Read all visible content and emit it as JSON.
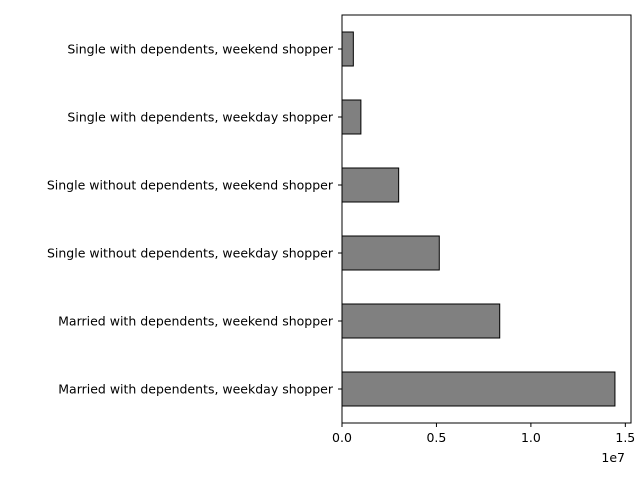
{
  "chart_data": {
    "type": "bar",
    "orientation": "horizontal",
    "categories": [
      "Single with dependents, weekend shopper",
      "Single with dependents, weekday shopper",
      "Single without dependents, weekend shopper",
      "Single without dependents, weekday shopper",
      "Married with dependents, weekend shopper",
      "Married with dependents, weekday shopper"
    ],
    "values": [
      600000,
      1000000,
      3000000,
      5150000,
      8350000,
      14450000
    ],
    "title": "",
    "xlabel": "",
    "ylabel": "",
    "xlim": [
      0,
      15300000
    ],
    "x_ticks": [
      {
        "value": 0,
        "label": "0.0"
      },
      {
        "value": 5000000,
        "label": "0.5"
      },
      {
        "value": 10000000,
        "label": "1.0"
      },
      {
        "value": 15000000,
        "label": "1.5"
      }
    ],
    "x_offset_label": "1e7",
    "grid": false,
    "legend": "none",
    "colors": {
      "bar_fill": "#808080",
      "bar_edge": "#000000"
    }
  }
}
